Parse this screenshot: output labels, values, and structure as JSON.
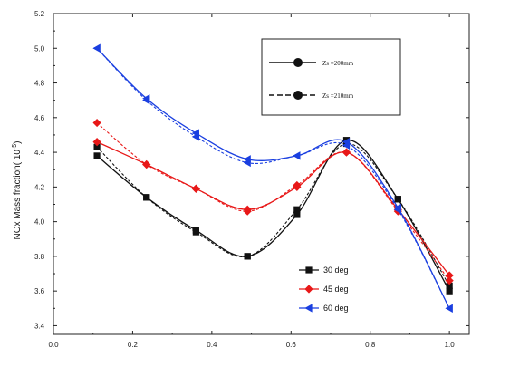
{
  "chart_data": {
    "type": "line",
    "title": "",
    "xlabel": "",
    "ylabel": "NOx Mass fraction( 10",
    "ylabel_sup": "-5",
    "ylabel_close": ")",
    "xlim": [
      0.0,
      1.05
    ],
    "ylim": [
      3.35,
      5.2
    ],
    "xticks": [
      "0.0",
      "0.2",
      "0.4",
      "0.6",
      "0.8",
      "1.0"
    ],
    "yticks": [
      "3.4",
      "3.6",
      "3.8",
      "4.0",
      "4.2",
      "4.4",
      "4.6",
      "4.8",
      "5.0",
      "5.2"
    ],
    "x": [
      0.11,
      0.235,
      0.36,
      0.49,
      0.615,
      0.74,
      0.87,
      1.0
    ],
    "series": [
      {
        "name": "30 deg",
        "color": "#111111",
        "marker": "square",
        "solid": [
          4.38,
          4.14,
          3.95,
          3.8,
          4.04,
          4.47,
          4.13,
          3.6
        ],
        "dashed": [
          4.43,
          4.14,
          3.94,
          3.8,
          4.07,
          4.45,
          4.13,
          3.63
        ]
      },
      {
        "name": "45 deg",
        "color": "#e81818",
        "marker": "diamond",
        "solid": [
          4.46,
          4.33,
          4.19,
          4.07,
          4.2,
          4.4,
          4.07,
          3.69
        ],
        "dashed": [
          4.57,
          4.33,
          4.19,
          4.06,
          4.21,
          4.4,
          4.06,
          3.66
        ]
      },
      {
        "name": "60 deg",
        "color": "#1a3fe0",
        "marker": "triangle-left",
        "solid": [
          5.0,
          4.71,
          4.51,
          4.36,
          4.38,
          4.46,
          4.08,
          3.5
        ],
        "dashed": [
          5.0,
          4.7,
          4.49,
          4.34,
          4.38,
          4.44,
          4.07,
          3.5
        ]
      }
    ],
    "style_legend": [
      {
        "label": "Zs =200mm",
        "line": "solid"
      },
      {
        "label": "Zs =210mm",
        "line": "dashed"
      }
    ],
    "legend_position": "bottom-right",
    "style_legend_position": "top-right",
    "grid": false
  }
}
